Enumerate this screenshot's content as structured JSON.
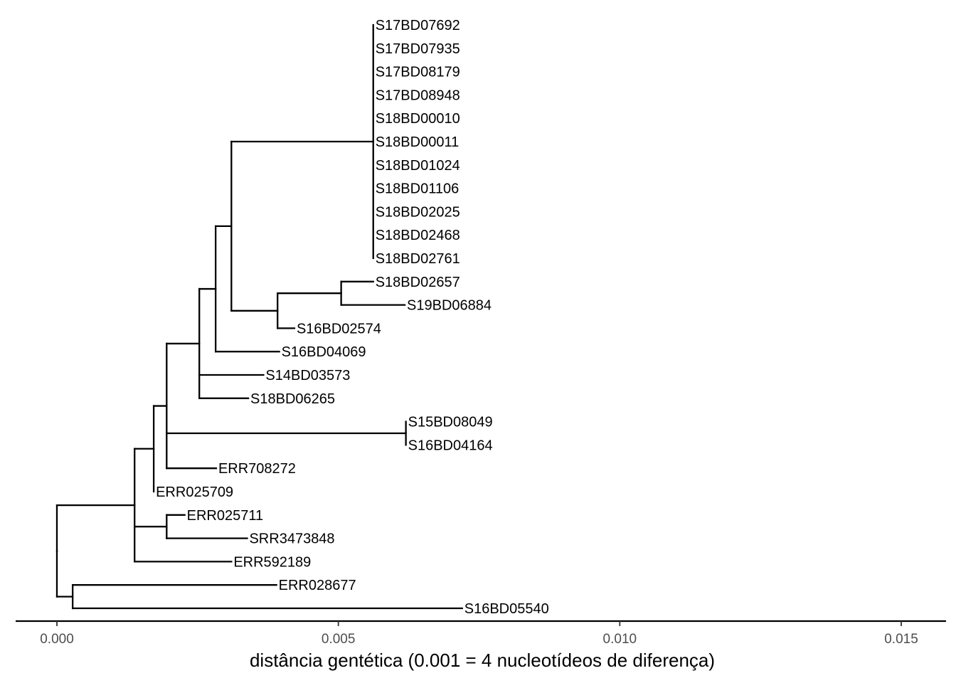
{
  "chart_data": {
    "type": "phylogenetic-tree",
    "xlabel": "distância gentética (0.001 = 4 nucleotídeos de diferença)",
    "xlim": [
      -0.00015,
      0.0158
    ],
    "x_ticks": [
      0.0,
      0.005,
      0.01,
      0.015
    ],
    "x_tick_labels": [
      "0.000",
      "0.005",
      "0.010",
      "0.015"
    ],
    "tips": [
      "S17BD07692",
      "S17BD07935",
      "S17BD08179",
      "S17BD08948",
      "S18BD00010",
      "S18BD00011",
      "S18BD01024",
      "S18BD01106",
      "S18BD02025",
      "S18BD02468",
      "S18BD02761",
      "S18BD02657",
      "S19BD06884",
      "S16BD02574",
      "S16BD04069",
      "S14BD03573",
      "S18BD06265",
      "S15BD08049",
      "S16BD04164",
      "ERR708272",
      "ERR025709",
      "ERR025711",
      "SRR3473848",
      "ERR592189",
      "ERR028677",
      "S16BD05540"
    ],
    "tree": {
      "x": 0.0,
      "children": [
        {
          "x": 0.00138,
          "children": [
            {
              "x": 0.00172,
              "children": [
                {
                  "x": 0.00195,
                  "children": [
                    {
                      "x": 0.00253,
                      "children": [
                        {
                          "x": 0.00282,
                          "children": [
                            {
                              "x": 0.0031,
                              "children": [
                                {
                                  "x": 0.00562,
                                  "children": [
                                    {
                                      "x": 0.00562,
                                      "tip": 0
                                    },
                                    {
                                      "x": 0.00562,
                                      "tip": 1
                                    },
                                    {
                                      "x": 0.00562,
                                      "tip": 2
                                    },
                                    {
                                      "x": 0.00562,
                                      "tip": 3
                                    },
                                    {
                                      "x": 0.00562,
                                      "tip": 4
                                    },
                                    {
                                      "x": 0.00562,
                                      "tip": 5
                                    },
                                    {
                                      "x": 0.00562,
                                      "tip": 6
                                    },
                                    {
                                      "x": 0.00562,
                                      "tip": 7
                                    },
                                    {
                                      "x": 0.00562,
                                      "tip": 8
                                    },
                                    {
                                      "x": 0.00562,
                                      "tip": 9
                                    },
                                    {
                                      "x": 0.00562,
                                      "tip": 10
                                    }
                                  ]
                                },
                                {
                                  "x": 0.00392,
                                  "children": [
                                    {
                                      "x": 0.00505,
                                      "children": [
                                        {
                                          "x": 0.00562,
                                          "tip": 11
                                        },
                                        {
                                          "x": 0.00618,
                                          "tip": 12
                                        }
                                      ]
                                    },
                                    {
                                      "x": 0.00422,
                                      "tip": 13
                                    }
                                  ]
                                }
                              ]
                            },
                            {
                              "x": 0.00395,
                              "tip": 14
                            }
                          ]
                        },
                        {
                          "x": 0.00367,
                          "tip": 15
                        },
                        {
                          "x": 0.0034,
                          "tip": 16
                        }
                      ]
                    },
                    {
                      "x": 0.0062,
                      "children": [
                        {
                          "x": 0.0062,
                          "tip": 17
                        },
                        {
                          "x": 0.0062,
                          "tip": 18
                        }
                      ]
                    },
                    {
                      "x": 0.00283,
                      "tip": 19
                    }
                  ]
                },
                {
                  "x": 0.00172,
                  "tip": 20
                }
              ]
            },
            {
              "x": 0.00195,
              "children": [
                {
                  "x": 0.00227,
                  "tip": 21
                },
                {
                  "x": 0.00338,
                  "tip": 22
                }
              ]
            },
            {
              "x": 0.0031,
              "tip": 23
            }
          ]
        },
        {
          "x": 0.00028,
          "children": [
            {
              "x": 0.0039,
              "tip": 24
            },
            {
              "x": 0.0072,
              "tip": 25
            }
          ]
        }
      ]
    }
  }
}
